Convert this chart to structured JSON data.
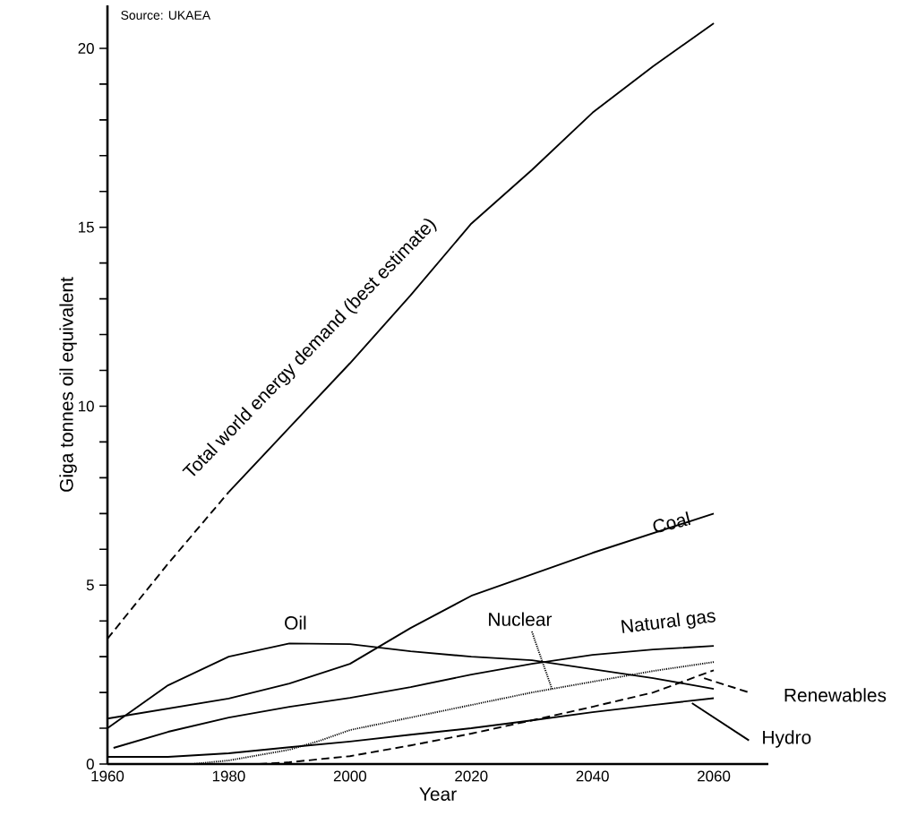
{
  "chart_data": {
    "type": "line",
    "xlabel": "Year",
    "ylabel": "Giga tonnes oil equivalent",
    "annotations": [
      "Source: UKAEA"
    ],
    "xlim": [
      1960,
      2069
    ],
    "ylim": [
      0,
      21.2
    ],
    "xticks": [
      1960,
      1980,
      2000,
      2020,
      2040,
      2060
    ],
    "yticks": [
      0,
      5,
      10,
      15,
      20
    ],
    "line_style": "solid",
    "series": [
      {
        "name": "Total world energy demand (best estimate)",
        "color": "#000000",
        "x": [
          1980,
          1990,
          2000,
          2010,
          2020,
          2030,
          2040,
          2050,
          2060
        ],
        "values": [
          7.6,
          9.4,
          11.2,
          13.1,
          15.1,
          16.6,
          18.2,
          19.5,
          20.7
        ]
      },
      {
        "color": "#000000",
        "line_style": "dashed",
        "x": [
          1960,
          1970,
          1980
        ],
        "values": [
          3.5,
          5.6,
          7.6
        ]
      },
      {
        "name": "Coal",
        "color": "#000000",
        "x": [
          1960,
          1980,
          1990,
          2000,
          2005,
          2010,
          2020,
          2030,
          2040,
          2050,
          2060
        ],
        "values": [
          1.27,
          1.83,
          2.25,
          2.8,
          3.3,
          3.8,
          4.7,
          5.3,
          5.9,
          6.45,
          7.0
        ]
      },
      {
        "name": "Oil",
        "color": "#000000",
        "x": [
          1960,
          1965,
          1970,
          1980,
          1990,
          2000,
          2010,
          2020,
          2030,
          2040,
          2050,
          2060
        ],
        "values": [
          1.0,
          1.6,
          2.2,
          3.0,
          3.37,
          3.35,
          3.15,
          3.0,
          2.9,
          2.65,
          2.4,
          2.1
        ]
      },
      {
        "name": "Nuclear",
        "color": "#000000",
        "line_style": "dotted",
        "x": [
          1974,
          1980,
          1990,
          1995,
          2000,
          2010,
          2020,
          2030,
          2040,
          2050,
          2060
        ],
        "values": [
          0,
          0.1,
          0.4,
          0.65,
          0.95,
          1.3,
          1.65,
          2.0,
          2.3,
          2.6,
          2.85
        ]
      },
      {
        "name": "Natural gas",
        "color": "#000000",
        "x": [
          1961,
          1970,
          1980,
          1990,
          2000,
          2010,
          2020,
          2030,
          2040,
          2050,
          2060
        ],
        "values": [
          0.45,
          0.9,
          1.3,
          1.6,
          1.85,
          2.15,
          2.5,
          2.8,
          3.05,
          3.2,
          3.3
        ]
      },
      {
        "name": "Renewables",
        "color": "#000000",
        "line_style": "dashed",
        "x": [
          1985,
          1990,
          2000,
          2010,
          2020,
          2030,
          2040,
          2050,
          2060
        ],
        "values": [
          0,
          0.05,
          0.22,
          0.52,
          0.85,
          1.22,
          1.6,
          2.0,
          2.62
        ]
      },
      {
        "name": "Hydro",
        "color": "#000000",
        "x": [
          1960,
          1970,
          1980,
          1990,
          2000,
          2010,
          2020,
          2030,
          2040,
          2050,
          2060
        ],
        "values": [
          0.2,
          0.2,
          0.3,
          0.47,
          0.63,
          0.82,
          1.0,
          1.22,
          1.45,
          1.65,
          1.84
        ]
      }
    ]
  }
}
